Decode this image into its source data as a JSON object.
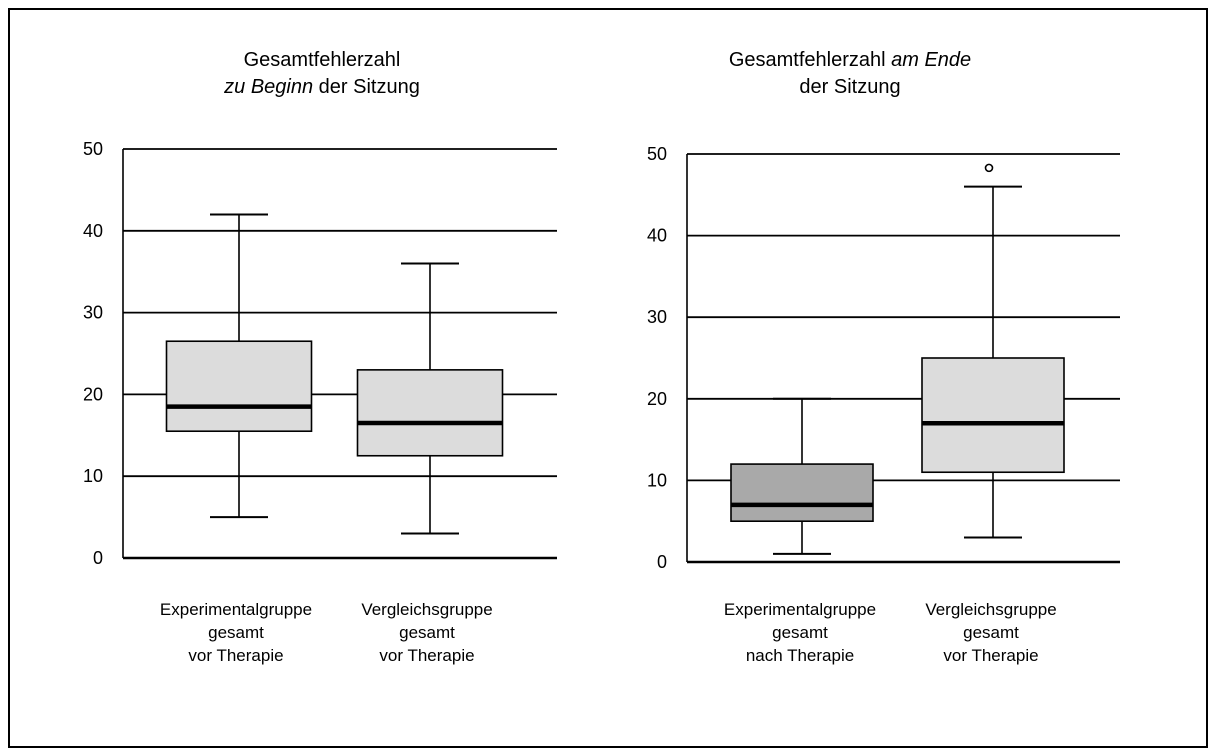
{
  "chart_data": [
    {
      "type": "box",
      "title_parts": [
        "Gesamtfehlerzahl",
        "zu Beginn",
        " der Sitzung"
      ],
      "ylim": [
        0,
        50
      ],
      "yticks": [
        "0",
        "10",
        "20",
        "30",
        "40",
        "50"
      ],
      "grid": true,
      "categories": [
        {
          "lines": [
            "Experimentalgruppe",
            "gesamt",
            "vor Therapie"
          ]
        },
        {
          "lines": [
            "Vergleichsgruppe",
            "gesamt",
            "vor Therapie"
          ]
        }
      ],
      "boxes": [
        {
          "min": 5,
          "q1": 15.5,
          "median": 18.5,
          "q3": 26.5,
          "max": 42,
          "outliers": [],
          "color": "#dcdcdc"
        },
        {
          "min": 3,
          "q1": 12.5,
          "median": 16.5,
          "q3": 23,
          "max": 36,
          "outliers": [],
          "color": "#dcdcdc"
        }
      ]
    },
    {
      "type": "box",
      "title_parts": [
        "Gesamtfehlerzahl ",
        "am Ende",
        "der Sitzung"
      ],
      "ylim": [
        0,
        50
      ],
      "yticks": [
        "0",
        "10",
        "20",
        "30",
        "40",
        "50"
      ],
      "grid": true,
      "categories": [
        {
          "lines": [
            "Experimentalgruppe",
            "gesamt",
            "nach Therapie"
          ]
        },
        {
          "lines": [
            "Vergleichsgruppe",
            "gesamt",
            "vor Therapie"
          ]
        }
      ],
      "boxes": [
        {
          "min": 1,
          "q1": 5,
          "median": 7,
          "q3": 12,
          "max": 20,
          "outliers": [],
          "color": "#a9a9a9"
        },
        {
          "min": 3,
          "q1": 11,
          "median": 17,
          "q3": 25,
          "max": 46,
          "outliers": [
            48.3
          ],
          "color": "#dcdcdc"
        }
      ]
    }
  ]
}
